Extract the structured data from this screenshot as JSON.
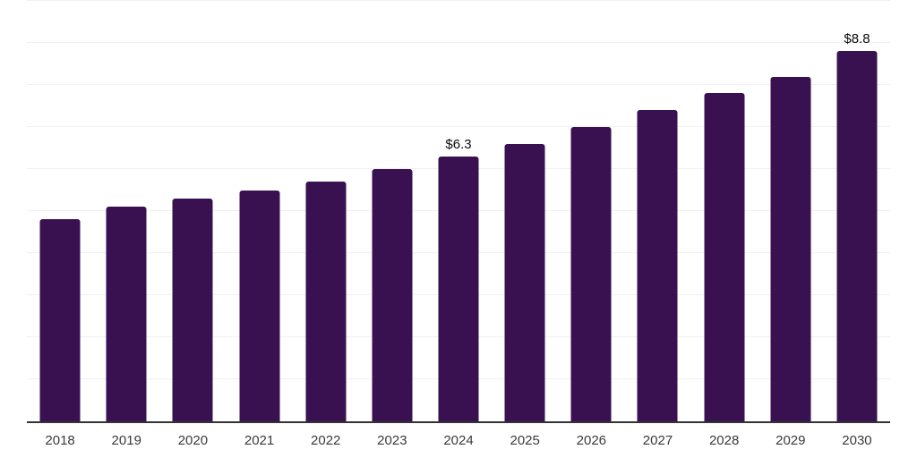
{
  "chart_data": {
    "type": "bar",
    "title": "",
    "xlabel": "",
    "ylabel": "",
    "categories": [
      "2018",
      "2019",
      "2020",
      "2021",
      "2022",
      "2023",
      "2024",
      "2025",
      "2026",
      "2027",
      "2028",
      "2029",
      "2030"
    ],
    "values": [
      4.8,
      5.1,
      5.3,
      5.5,
      5.7,
      6.0,
      6.3,
      6.6,
      7.0,
      7.4,
      7.8,
      8.2,
      8.8
    ],
    "data_labels": [
      "",
      "",
      "",
      "",
      "",
      "",
      "$6.3",
      "",
      "",
      "",
      "",
      "",
      "$8.8"
    ],
    "ylim": [
      0,
      10
    ],
    "gridline_step": 1,
    "grid": true,
    "legend_position": "none",
    "colors": {
      "bar": "#3a1150",
      "gridline": "#f0f0f0",
      "axis_line": "#333333",
      "tick_label": "#3a3a3a",
      "data_label": "#0a0a0a",
      "background": "#ffffff"
    }
  }
}
